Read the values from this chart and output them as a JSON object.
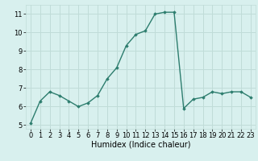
{
  "x": [
    0,
    1,
    2,
    3,
    4,
    5,
    6,
    7,
    8,
    9,
    10,
    11,
    12,
    13,
    14,
    15,
    16,
    17,
    18,
    19,
    20,
    21,
    22,
    23
  ],
  "y": [
    5.1,
    6.3,
    6.8,
    6.6,
    6.3,
    6.0,
    6.2,
    6.6,
    7.5,
    8.1,
    9.3,
    9.9,
    10.1,
    11.0,
    11.1,
    11.1,
    5.9,
    6.4,
    6.5,
    6.8,
    6.7,
    6.8,
    6.8,
    6.5
  ],
  "line_color": "#2d7d6e",
  "marker": "D",
  "marker_size": 1.8,
  "bg_color": "#d8f0ee",
  "grid_color": "#c0dcd8",
  "xlabel": "Humidex (Indice chaleur)",
  "xlabel_fontsize": 7,
  "tick_fontsize": 6,
  "xlim": [
    -0.5,
    23.5
  ],
  "ylim": [
    4.8,
    11.5
  ],
  "yticks": [
    5,
    6,
    7,
    8,
    9,
    10,
    11
  ],
  "xticks": [
    0,
    1,
    2,
    3,
    4,
    5,
    6,
    7,
    8,
    9,
    10,
    11,
    12,
    13,
    14,
    15,
    16,
    17,
    18,
    19,
    20,
    21,
    22,
    23
  ],
  "line_width": 1.0
}
